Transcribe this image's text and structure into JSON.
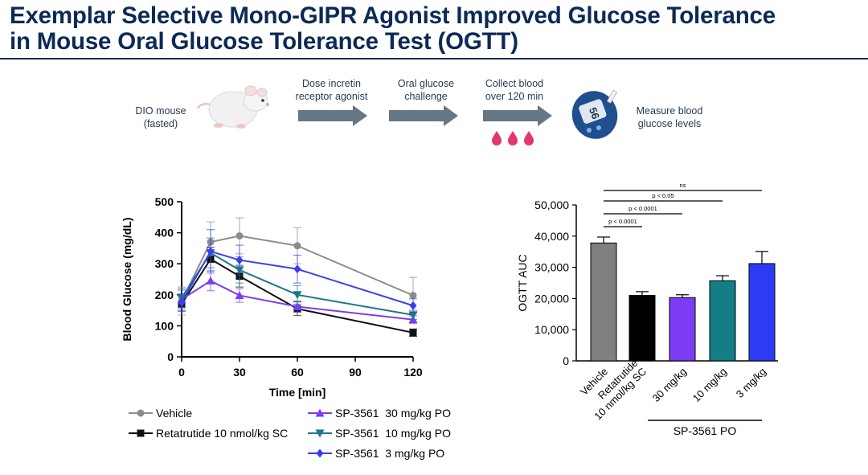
{
  "title": {
    "line1": "Exemplar Selective Mono-GIPR Agonist Improved Glucose Tolerance",
    "line2": "in Mouse Oral Glucose Tolerance Test (OGTT)"
  },
  "workflow": {
    "mouse_label": [
      "DIO mouse",
      "(fasted)"
    ],
    "step1": [
      "Dose incretin",
      "receptor agonist"
    ],
    "step2": [
      "Oral glucose",
      "challenge"
    ],
    "step3": [
      "Collect blood",
      "over 120 min"
    ],
    "meter_label": [
      "Measure blood",
      "glucose levels"
    ],
    "meter_reading": "56",
    "colors": {
      "arrow": "#667886",
      "blood": "#e5366a",
      "meter": "#1f4f8e"
    }
  },
  "chart_data": [
    {
      "type": "line",
      "xlabel": "Time [min]",
      "ylabel": "Blood Glucose (mg/dL)",
      "xlim": [
        0,
        120
      ],
      "ylim": [
        0,
        500
      ],
      "xticks": [
        0,
        30,
        60,
        90,
        120
      ],
      "yticks": [
        0,
        100,
        200,
        300,
        400,
        500
      ],
      "x": [
        0,
        15,
        30,
        60,
        120
      ],
      "series": [
        {
          "name": "Vehicle",
          "marker": "circle",
          "color": "#8c8c8c",
          "values": [
            180,
            370,
            390,
            358,
            198
          ],
          "errors": [
            45,
            65,
            58,
            58,
            58
          ]
        },
        {
          "name": "Retatrutide 10 nmol/kg SC",
          "marker": "square",
          "color": "#111111",
          "values": [
            170,
            315,
            260,
            155,
            78
          ],
          "errors": [
            22,
            38,
            35,
            22,
            12
          ]
        },
        {
          "name": "SP-3561  30 mg/kg PO",
          "marker": "triangle-up",
          "color": "#7a3df0",
          "values": [
            185,
            245,
            198,
            162,
            120
          ],
          "errors": [
            30,
            32,
            22,
            18,
            12
          ]
        },
        {
          "name": "SP-3561  10 mg/kg PO",
          "marker": "triangle-down",
          "color": "#1a7a84",
          "values": [
            190,
            335,
            280,
            200,
            135
          ],
          "errors": [
            30,
            48,
            42,
            30,
            15
          ]
        },
        {
          "name": "SP-3561  3 mg/kg PO",
          "marker": "diamond",
          "color": "#3a3ef0",
          "values": [
            175,
            340,
            312,
            283,
            165
          ],
          "errors": [
            28,
            70,
            48,
            45,
            22
          ]
        }
      ]
    },
    {
      "type": "bar",
      "ylabel": "OGTT AUC",
      "ylim": [
        0,
        50000
      ],
      "yticks": [
        "0",
        "10,000",
        "20,000",
        "30,000",
        "40,000",
        "50,000"
      ],
      "categories": [
        "Vehicle",
        "Retatrutide\n10 nmol/kg SC",
        "30 mg/kg",
        "10 mg/kg",
        "3 mg/kg"
      ],
      "values": [
        37800,
        21000,
        20300,
        25700,
        31200
      ],
      "errors": [
        1900,
        1200,
        900,
        1600,
        3900
      ],
      "colors": [
        "#7f7f7f",
        "#000000",
        "#7b3cf3",
        "#147e86",
        "#2c3cf4"
      ],
      "group_label": "SP-3561 PO",
      "significance": [
        "ns",
        "p < 0.05",
        "p < 0.0001",
        "p < 0.0001"
      ]
    }
  ]
}
